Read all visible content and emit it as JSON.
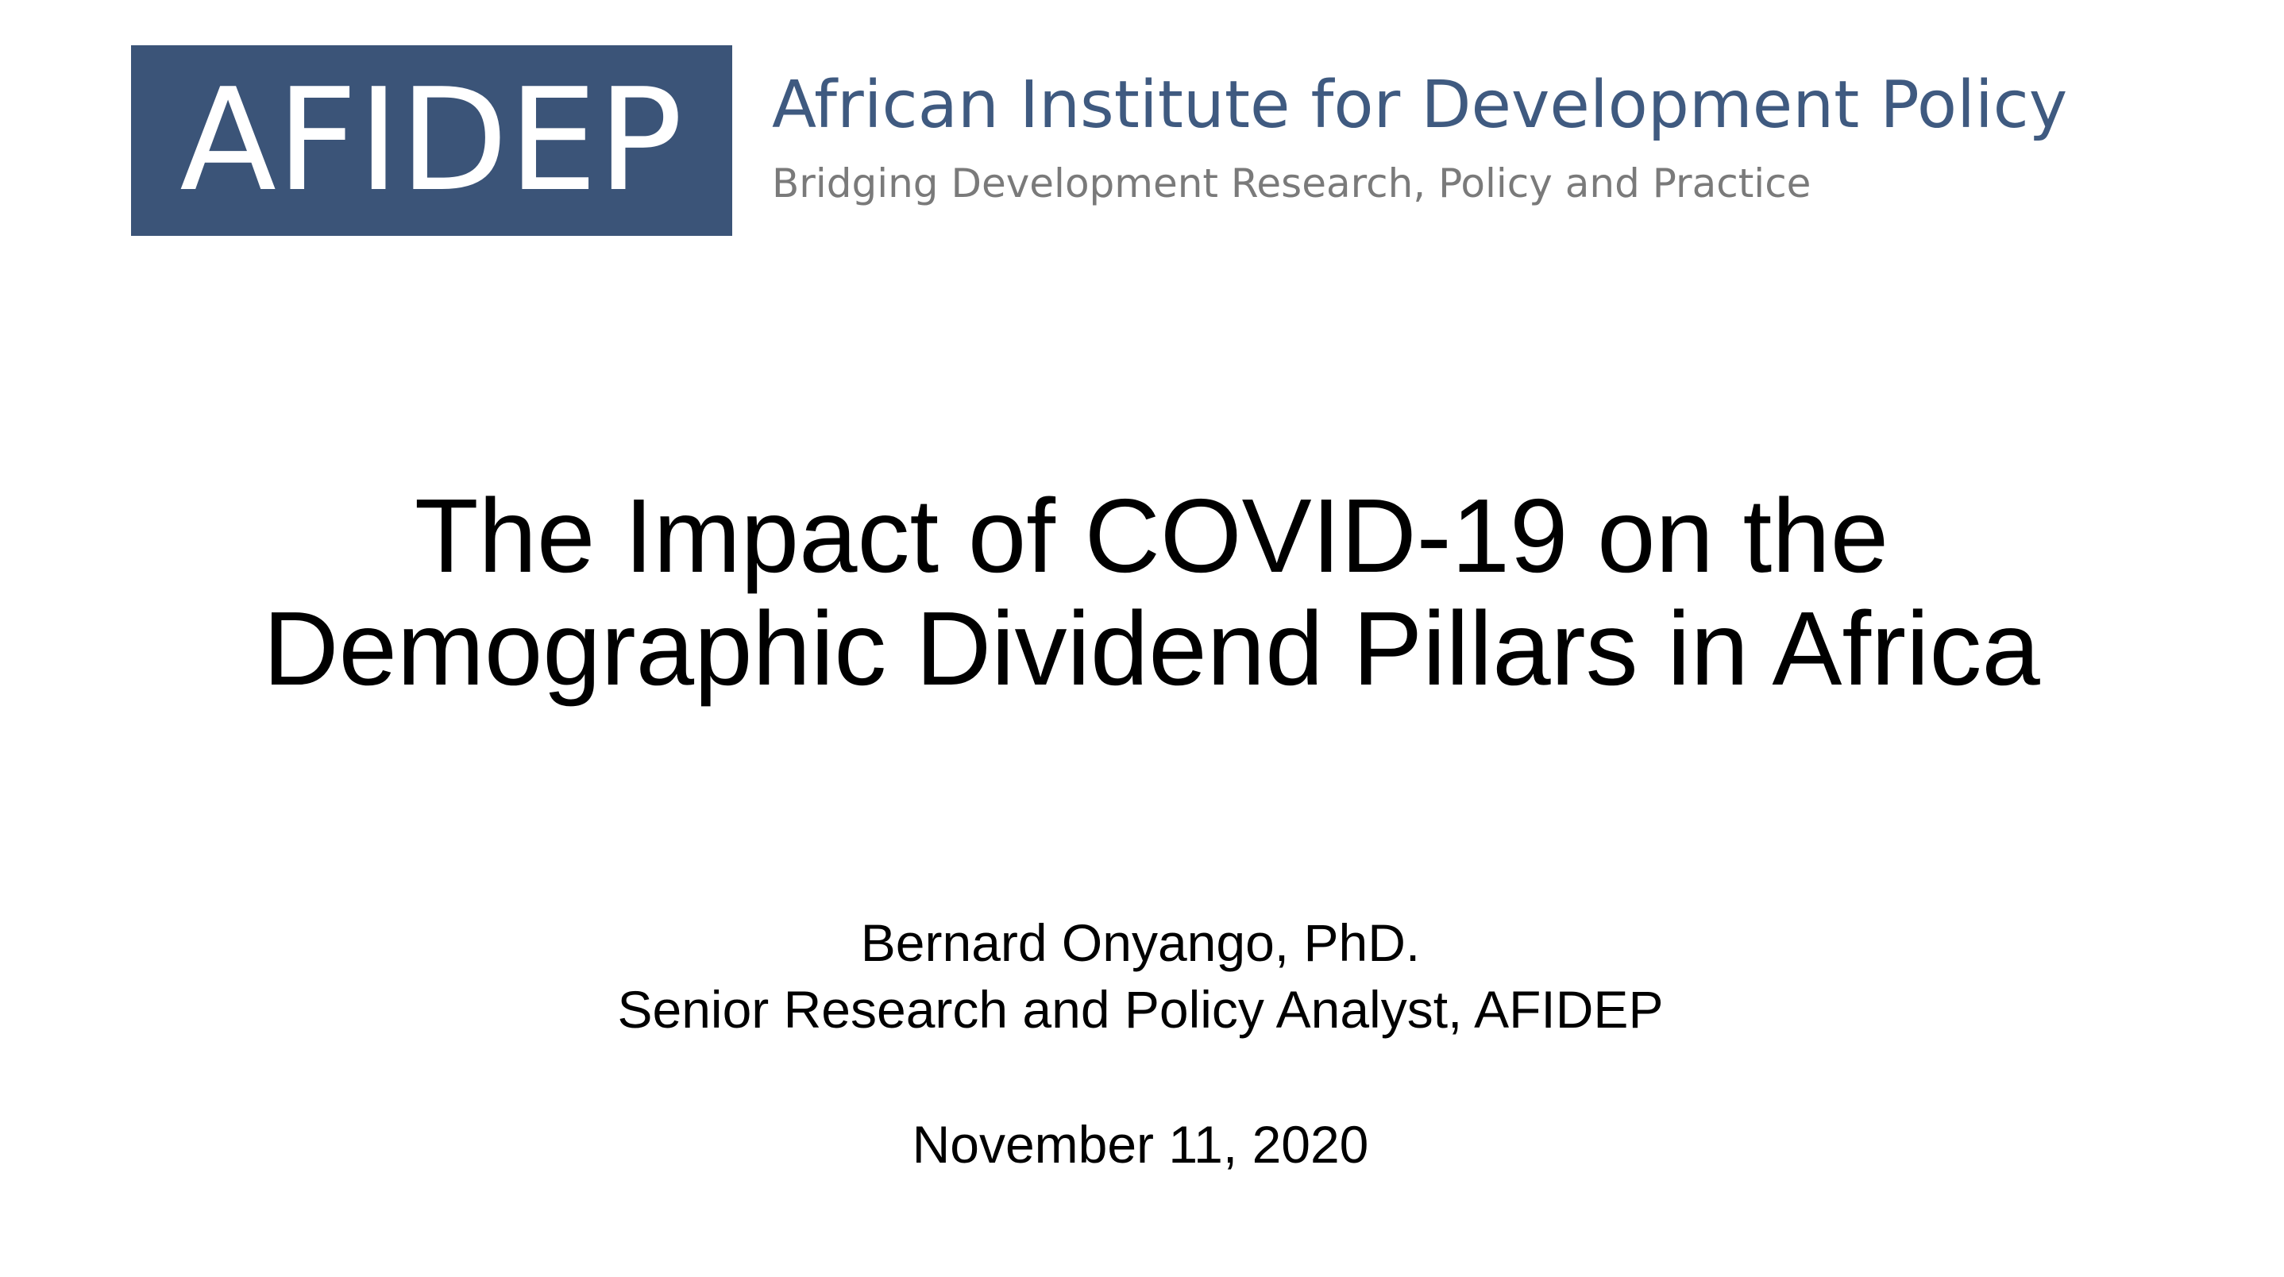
{
  "header": {
    "logo_text": "AFIDEP",
    "name": "African Institute for Development Policy",
    "tagline": "Bridging Development Research, Policy and Practice"
  },
  "title": {
    "lines": [
      "The Impact of COVID-19 on the",
      "Demographic Dividend Pillars in Africa"
    ]
  },
  "presenter": {
    "name": "Bernard Onyango, PhD.",
    "role": "Senior Research and Policy Analyst, AFIDEP"
  },
  "date": "November 11, 2020"
}
